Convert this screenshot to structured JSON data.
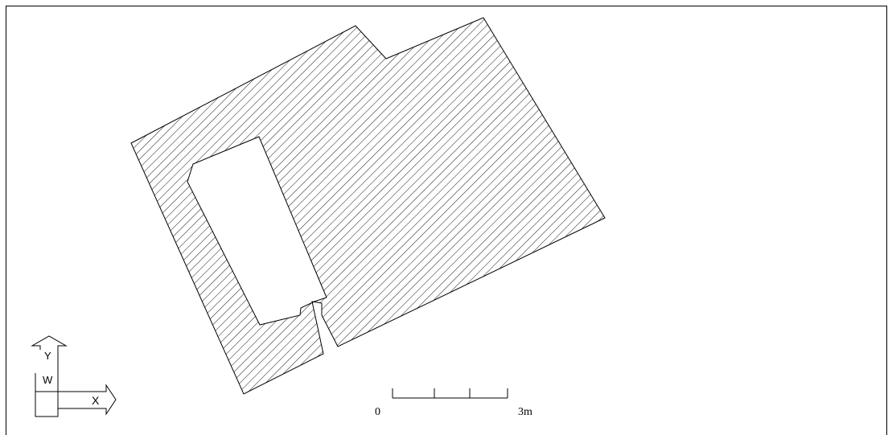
{
  "drawing": {
    "background": "#ffffff",
    "line_color": "#000000",
    "hatch_pattern": "diagonal-lines"
  },
  "ucs_icon": {
    "y_label": "Y",
    "x_label": "X",
    "w_label": "W"
  },
  "scale_bar": {
    "start_label": "0",
    "end_label": "3m",
    "divisions": 3
  }
}
